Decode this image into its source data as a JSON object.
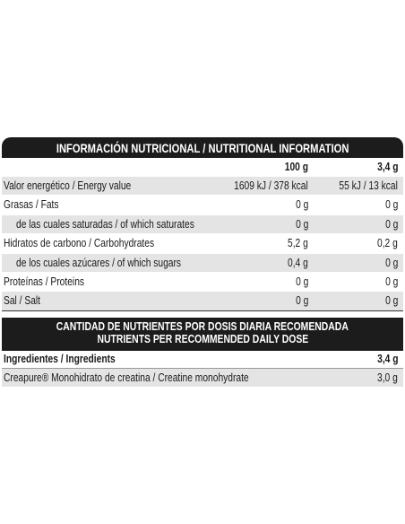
{
  "header": {
    "title": "INFORMACIÓN NUTRICIONAL / NUTRITIONAL INFORMATION"
  },
  "table": {
    "columns": [
      "100 g",
      "3,4 g"
    ],
    "rows": [
      [
        "Valor energético / Energy value",
        "1609 kJ / 378 kcal",
        "55 kJ / 13 kcal"
      ],
      [
        "Grasas / Fats",
        "0 g",
        "0 g"
      ],
      [
        "de las cuales saturadas / of which saturates",
        "0 g",
        "0 g"
      ],
      [
        "Hidratos de carbono / Carbohydrates",
        "5,2 g",
        "0,2 g"
      ],
      [
        "de los cuales azúcares / of which sugars",
        "0,4 g",
        "0 g"
      ],
      [
        "Proteínas / Proteins",
        "0 g",
        "0 g"
      ],
      [
        "Sal / Salt",
        "0 g",
        "0 g"
      ]
    ]
  },
  "dose": {
    "title": [
      "CANTIDAD DE NUTRIENTES POR DOSIS DIARIA RECOMENDADA",
      "NUTRIENTS PER RECOMMENDED DAILY DOSE"
    ],
    "header": [
      "Ingredientes / Ingredients",
      "3,4 g"
    ],
    "rows": [
      [
        "Creapure® Monohidrato de creatina / Creatine monohydrate",
        "3,0 g"
      ]
    ]
  }
}
